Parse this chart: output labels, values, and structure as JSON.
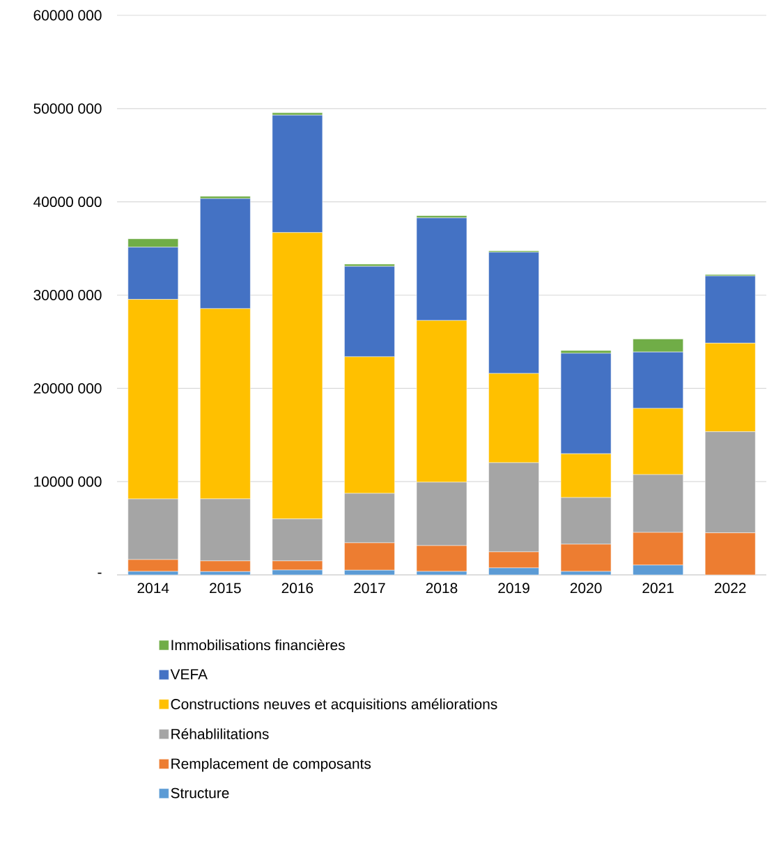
{
  "chart_data": {
    "type": "bar",
    "stacked": true,
    "grid": "y",
    "legend": "bottom",
    "categories": [
      "2014",
      "2015",
      "2016",
      "2017",
      "2018",
      "2019",
      "2020",
      "2021",
      "2022"
    ],
    "ylim": [
      0,
      60000000
    ],
    "yticks": [
      {
        "value": 0,
        "label": "-"
      },
      {
        "value": 10000000,
        "label": "10000 000"
      },
      {
        "value": 20000000,
        "label": "20000 000"
      },
      {
        "value": 30000000,
        "label": "30000 000"
      },
      {
        "value": 40000000,
        "label": "40000 000"
      },
      {
        "value": 50000000,
        "label": "50000 000"
      },
      {
        "value": 60000000,
        "label": "60000 000"
      }
    ],
    "series": [
      {
        "name": "Structure",
        "color": "#5b9bd5",
        "values": [
          370000,
          350000,
          520000,
          500000,
          370000,
          750000,
          370000,
          1050000,
          null
        ]
      },
      {
        "name": "Remplacement de composants",
        "color": "#ed7d31",
        "values": [
          1270000,
          1150000,
          980000,
          2940000,
          2770000,
          1720000,
          2920000,
          3500000,
          4510000
        ]
      },
      {
        "name": "Réhablilitations",
        "color": "#a5a5a5",
        "values": [
          6500000,
          6650000,
          4500000,
          5300000,
          6800000,
          9560000,
          5000000,
          6200000,
          10840000
        ]
      },
      {
        "name": "Constructions neuves et acquisitions améliorations",
        "color": "#ffc000",
        "values": [
          21400000,
          20400000,
          30700000,
          14650000,
          17340000,
          9570000,
          4700000,
          7100000,
          9500000
        ]
      },
      {
        "name": "VEFA",
        "color": "#4472c4",
        "values": [
          5600000,
          11800000,
          12600000,
          9700000,
          11000000,
          13000000,
          10770000,
          6050000,
          7200000
        ]
      },
      {
        "name": "Immobilisations financières",
        "color": "#70ad47",
        "values": [
          900000,
          250000,
          250000,
          230000,
          230000,
          150000,
          300000,
          1400000,
          150000
        ]
      }
    ]
  }
}
